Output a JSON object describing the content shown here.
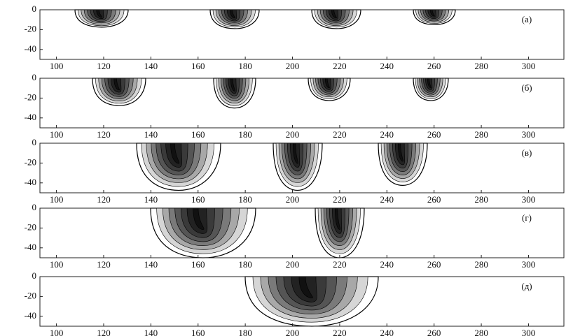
{
  "chart_data": [
    {
      "type": "contour",
      "label": "(a)",
      "xlim": [
        93,
        315
      ],
      "ylim": [
        -50,
        0
      ],
      "xticks": [
        100,
        120,
        140,
        160,
        180,
        200,
        220,
        240,
        260,
        280,
        300
      ],
      "yticks": [
        0,
        -20,
        -40
      ]
    },
    {
      "type": "contour",
      "label": "(б)",
      "xlim": [
        93,
        315
      ],
      "ylim": [
        -50,
        0
      ],
      "xticks": [
        100,
        120,
        140,
        160,
        180,
        200,
        220,
        240,
        260,
        280,
        300
      ],
      "yticks": [
        0,
        -20,
        -40
      ]
    },
    {
      "type": "contour",
      "label": "(в)",
      "xlim": [
        93,
        315
      ],
      "ylim": [
        -50,
        0
      ],
      "xticks": [
        100,
        120,
        140,
        160,
        180,
        200,
        220,
        240,
        260,
        280,
        300
      ],
      "yticks": [
        0,
        -20,
        -40
      ]
    },
    {
      "type": "contour",
      "label": "(г)",
      "xlim": [
        93,
        315
      ],
      "ylim": [
        -50,
        0
      ],
      "xticks": [
        100,
        120,
        140,
        160,
        180,
        200,
        220,
        240,
        260,
        280,
        300
      ],
      "yticks": [
        0,
        -20,
        -40
      ]
    },
    {
      "type": "contour",
      "label": "(д)",
      "xlim": [
        93,
        315
      ],
      "ylim": [
        -50,
        0
      ],
      "xticks": [
        100,
        120,
        140,
        160,
        180,
        200,
        220,
        240,
        260,
        280,
        300
      ],
      "yticks": [
        0,
        -20,
        -40
      ]
    }
  ]
}
